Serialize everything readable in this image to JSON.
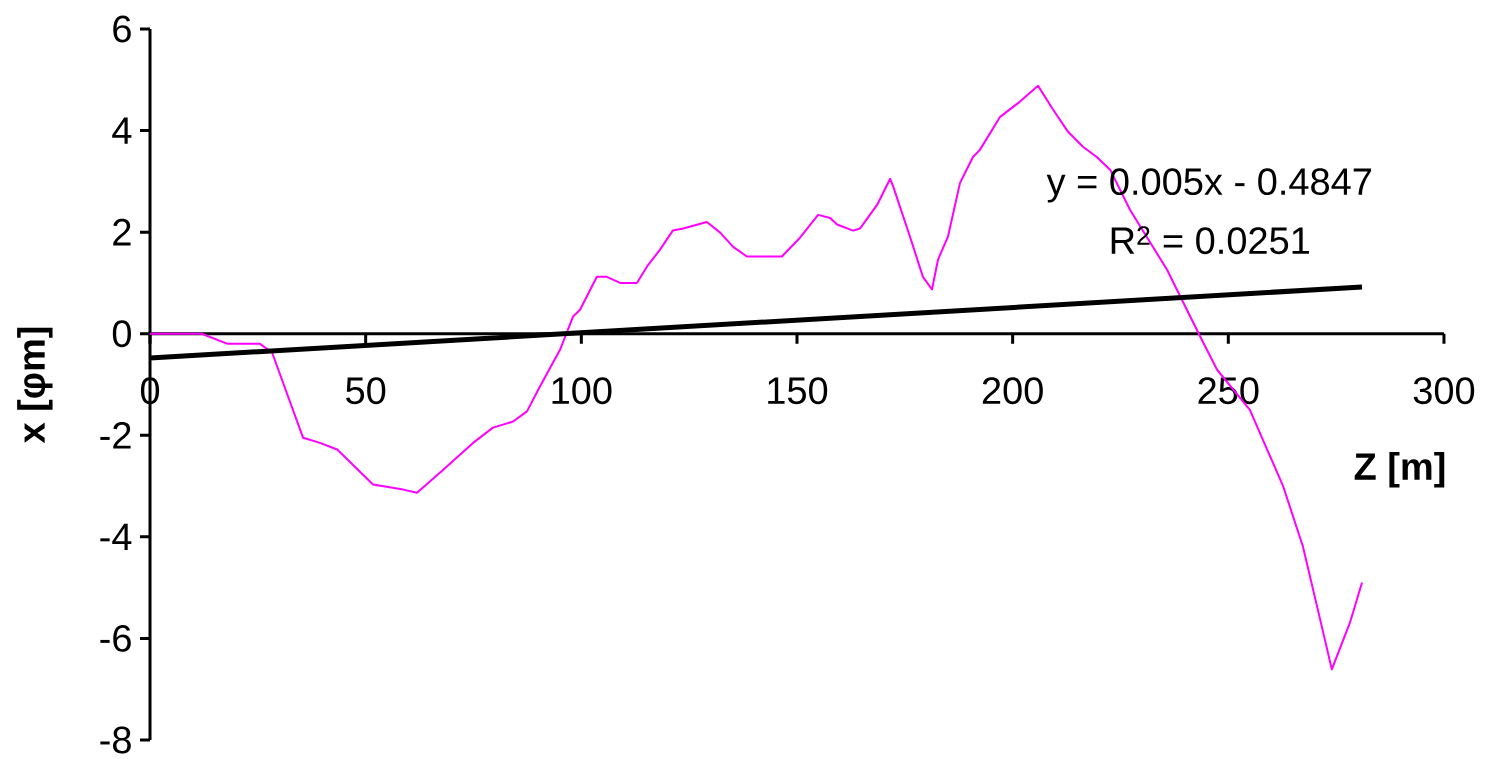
{
  "chart_data": {
    "type": "line",
    "xlabel": "Z [m]",
    "ylabel": "x [φm]",
    "xlim": [
      0,
      300
    ],
    "ylim": [
      -8,
      6
    ],
    "xticks": [
      0,
      50,
      100,
      150,
      200,
      250,
      300
    ],
    "yticks": [
      -8,
      -6,
      -4,
      -2,
      0,
      2,
      4,
      6
    ],
    "grid": false,
    "marker": "none",
    "line_style": "solid",
    "annotations": [
      "y = 0.005x - 0.4847",
      "R$^{2}$ = 0.0251"
    ],
    "series": [
      {
        "color": "#ff00ff",
        "x": [
          0,
          12,
          18,
          25.5,
          28.3,
          35.5,
          39.4,
          43.4,
          51.7,
          58.7,
          61.9,
          67.2,
          74.9,
          79.5,
          84.2,
          87.4,
          90.4,
          95.1,
          98.1,
          99.7,
          103.6,
          105.9,
          109,
          112.9,
          115.2,
          118.2,
          121.2,
          123.6,
          129.1,
          132.2,
          135.2,
          138.4,
          146.5,
          150.7,
          154.9,
          157.7,
          159.3,
          163,
          164.6,
          168.6,
          171.6,
          172.3,
          176.2,
          179.2,
          181.3,
          182.7,
          185,
          187.8,
          190.8,
          192.4,
          197.1,
          201.7,
          205.9,
          209.1,
          212.8,
          216.3,
          219.5,
          222.6,
          227.2,
          235.8,
          243.5,
          247.4,
          255,
          262.7,
          267.3,
          271.3,
          274,
          278.2,
          281
        ],
        "values": [
          0,
          0,
          -0.2,
          -0.2,
          -0.37,
          -2.05,
          -2.15,
          -2.28,
          -2.97,
          -3.07,
          -3.13,
          -2.74,
          -2.15,
          -1.85,
          -1.73,
          -1.53,
          -1.04,
          -0.31,
          0.34,
          0.47,
          1.12,
          1.12,
          1.0,
          1.0,
          1.32,
          1.65,
          2.03,
          2.07,
          2.2,
          1.99,
          1.71,
          1.52,
          1.52,
          1.89,
          2.34,
          2.28,
          2.15,
          2.03,
          2.07,
          2.54,
          3.05,
          2.9,
          1.91,
          1.12,
          0.87,
          1.46,
          1.91,
          2.97,
          3.48,
          3.62,
          4.27,
          4.57,
          4.88,
          4.45,
          3.98,
          3.68,
          3.48,
          3.23,
          2.44,
          1.26,
          -0.06,
          -0.71,
          -1.5,
          -3.0,
          -4.19,
          -5.63,
          -6.61,
          -5.69,
          -4.9
        ]
      },
      {
        "color": "#000000",
        "x": [
          0,
          281
        ],
        "values": [
          -0.48,
          0.92
        ]
      }
    ]
  }
}
